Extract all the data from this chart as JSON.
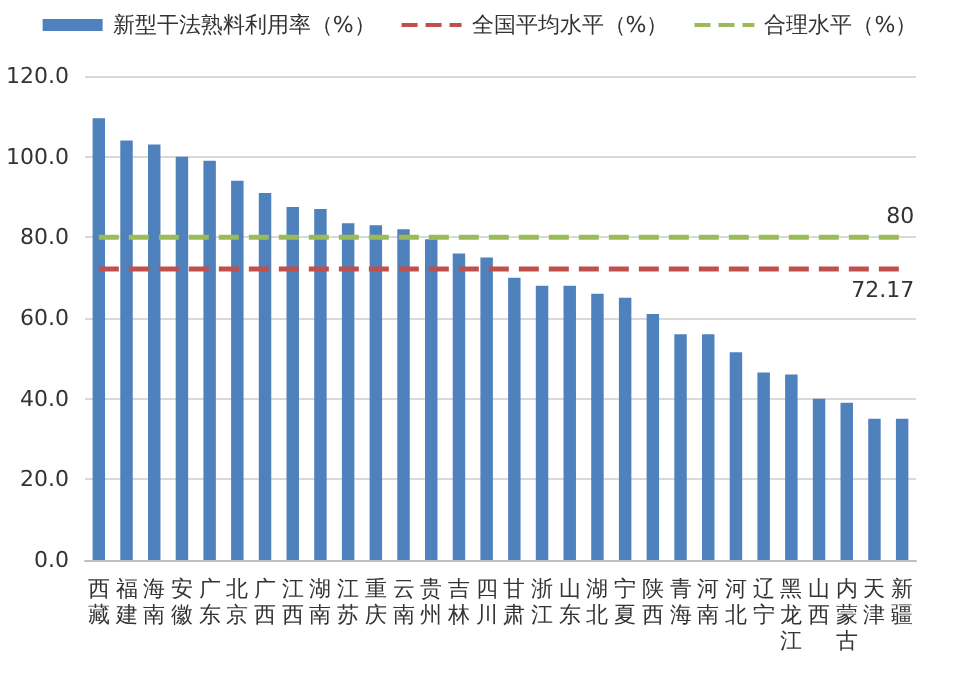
{
  "chart_data": {
    "type": "bar",
    "categories": [
      "西藏",
      "福建",
      "海南",
      "安徽",
      "广东",
      "北京",
      "广西",
      "江西",
      "湖南",
      "江苏",
      "重庆",
      "云南",
      "贵州",
      "吉林",
      "四川",
      "甘肃",
      "浙江",
      "山东",
      "湖北",
      "宁夏",
      "陕西",
      "青海",
      "河南",
      "河北",
      "辽宁",
      "黑龙江",
      "山西",
      "内蒙古",
      "天津",
      "新疆"
    ],
    "series": [
      {
        "name": "新型干法熟料利用率（%）",
        "color": "#4f81bd",
        "values": [
          109.5,
          104,
          103,
          100,
          99,
          94,
          91,
          87.5,
          87,
          83.5,
          83,
          82,
          79.5,
          76,
          75,
          70,
          68,
          68,
          66,
          65,
          61,
          56,
          56,
          51.5,
          46.5,
          46,
          40,
          39,
          35,
          35
        ]
      },
      {
        "name": "全国平均水平（%）",
        "type": "line",
        "color": "#c0504d",
        "line_style": "dashed",
        "values": [
          72.17,
          72.17,
          72.17,
          72.17,
          72.17,
          72.17,
          72.17,
          72.17,
          72.17,
          72.17,
          72.17,
          72.17,
          72.17,
          72.17,
          72.17,
          72.17,
          72.17,
          72.17,
          72.17,
          72.17,
          72.17,
          72.17,
          72.17,
          72.17,
          72.17,
          72.17,
          72.17,
          72.17,
          72.17,
          72.17
        ],
        "value_labels": [
          null,
          null,
          null,
          null,
          null,
          null,
          null,
          null,
          null,
          null,
          null,
          null,
          null,
          null,
          null,
          null,
          null,
          null,
          null,
          null,
          null,
          null,
          null,
          null,
          null,
          null,
          null,
          null,
          null,
          "72.17"
        ]
      },
      {
        "name": "合理水平（%）",
        "type": "line",
        "color": "#9bbb59",
        "line_style": "dashed",
        "values": [
          80,
          80,
          80,
          80,
          80,
          80,
          80,
          80,
          80,
          80,
          80,
          80,
          80,
          80,
          80,
          80,
          80,
          80,
          80,
          80,
          80,
          80,
          80,
          80,
          80,
          80,
          80,
          80,
          80,
          80
        ],
        "value_labels": [
          null,
          null,
          null,
          null,
          null,
          null,
          null,
          null,
          null,
          null,
          null,
          null,
          null,
          null,
          null,
          null,
          null,
          null,
          null,
          null,
          null,
          null,
          null,
          null,
          null,
          null,
          null,
          null,
          null,
          "80"
        ]
      }
    ],
    "ylim": [
      0,
      120
    ],
    "yticks": [
      {
        "value": 0,
        "label": "0.0"
      },
      {
        "value": 20,
        "label": "20.0"
      },
      {
        "value": 40,
        "label": "40.0"
      },
      {
        "value": 60,
        "label": "60.0"
      },
      {
        "value": 80,
        "label": "80.0"
      },
      {
        "value": 100,
        "label": "100.0"
      },
      {
        "value": 120,
        "label": "120.0"
      }
    ],
    "grid": "y",
    "legend": "top"
  }
}
